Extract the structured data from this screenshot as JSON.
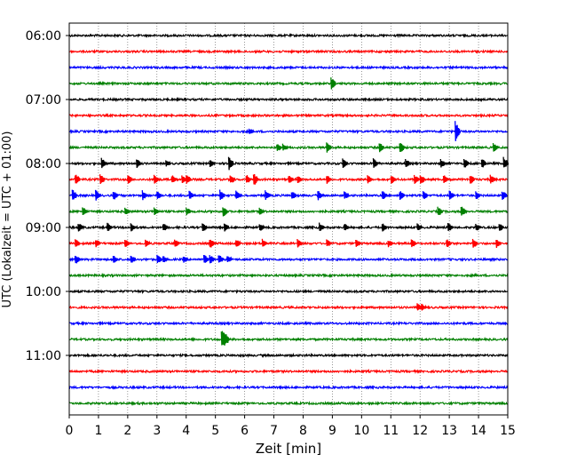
{
  "chart_data": {
    "type": "line",
    "xlabel": "Zeit  [min]",
    "ylabel": "UTC (Lokalzeit = UTC + 01:00)",
    "xlim": [
      0,
      15
    ],
    "x_ticks": [
      "0",
      "1",
      "2",
      "3",
      "4",
      "5",
      "6",
      "7",
      "8",
      "9",
      "10",
      "11",
      "12",
      "13",
      "14",
      "15"
    ],
    "y_ticks": [
      {
        "label": "06:00",
        "trace": 0
      },
      {
        "label": "07:00",
        "trace": 4
      },
      {
        "label": "08:00",
        "trace": 8
      },
      {
        "label": "09:00",
        "trace": 12
      },
      {
        "label": "10:00",
        "trace": 16
      },
      {
        "label": "11:00",
        "trace": 20
      }
    ],
    "trace_interval_min": 15,
    "trace_colors": [
      "#000000",
      "#ff0000",
      "#0000ff",
      "#008000"
    ],
    "grid": "vertical dotted at each minute",
    "traces": [
      {
        "start": "06:00",
        "events": []
      },
      {
        "start": "06:15",
        "events": []
      },
      {
        "start": "06:30",
        "events": []
      },
      {
        "start": "06:45",
        "events": [
          {
            "t": 8.95,
            "amp": 1.3
          }
        ]
      },
      {
        "start": "07:00",
        "events": []
      },
      {
        "start": "07:15",
        "events": []
      },
      {
        "start": "07:30",
        "events": [
          {
            "t": 6.15,
            "amp": 0.6
          },
          {
            "t": 13.2,
            "amp": 2.0
          }
        ]
      },
      {
        "start": "07:45",
        "events": [
          {
            "t": 7.1,
            "amp": 0.9
          },
          {
            "t": 7.3,
            "amp": 0.8
          },
          {
            "t": 8.8,
            "amp": 1.2
          },
          {
            "t": 10.6,
            "amp": 1.0
          },
          {
            "t": 11.3,
            "amp": 1.2
          },
          {
            "t": 14.5,
            "amp": 0.9
          }
        ]
      },
      {
        "start": "08:00",
        "events": [
          {
            "t": 1.1,
            "amp": 1.1
          },
          {
            "t": 2.3,
            "amp": 0.9
          },
          {
            "t": 3.3,
            "amp": 0.7
          },
          {
            "t": 4.8,
            "amp": 0.8
          },
          {
            "t": 5.45,
            "amp": 1.4
          },
          {
            "t": 9.35,
            "amp": 1.0
          },
          {
            "t": 10.4,
            "amp": 1.0
          },
          {
            "t": 11.5,
            "amp": 0.9
          },
          {
            "t": 12.7,
            "amp": 0.9
          },
          {
            "t": 13.5,
            "amp": 1.0
          },
          {
            "t": 14.1,
            "amp": 1.0
          },
          {
            "t": 14.85,
            "amp": 1.3
          }
        ]
      },
      {
        "start": "08:15",
        "events": [
          {
            "t": 0.2,
            "amp": 1.2
          },
          {
            "t": 1.05,
            "amp": 1.1
          },
          {
            "t": 2.0,
            "amp": 0.9
          },
          {
            "t": 2.9,
            "amp": 1.0
          },
          {
            "t": 3.5,
            "amp": 0.9
          },
          {
            "t": 3.85,
            "amp": 0.8
          },
          {
            "t": 4.0,
            "amp": 1.0
          },
          {
            "t": 5.5,
            "amp": 1.0
          },
          {
            "t": 6.05,
            "amp": 1.0
          },
          {
            "t": 6.3,
            "amp": 1.3
          },
          {
            "t": 7.5,
            "amp": 1.0
          },
          {
            "t": 7.8,
            "amp": 0.8
          },
          {
            "t": 8.8,
            "amp": 0.9
          },
          {
            "t": 10.2,
            "amp": 1.0
          },
          {
            "t": 11.0,
            "amp": 0.9
          },
          {
            "t": 11.8,
            "amp": 0.9
          },
          {
            "t": 12.0,
            "amp": 1.1
          },
          {
            "t": 12.8,
            "amp": 0.9
          },
          {
            "t": 13.7,
            "amp": 1.0
          },
          {
            "t": 14.4,
            "amp": 0.9
          }
        ]
      },
      {
        "start": "08:30",
        "events": [
          {
            "t": 0.1,
            "amp": 1.2
          },
          {
            "t": 0.9,
            "amp": 1.1
          },
          {
            "t": 1.5,
            "amp": 1.0
          },
          {
            "t": 2.5,
            "amp": 1.0
          },
          {
            "t": 3.0,
            "amp": 0.9
          },
          {
            "t": 4.1,
            "amp": 0.9
          },
          {
            "t": 5.15,
            "amp": 1.2
          },
          {
            "t": 5.7,
            "amp": 1.0
          },
          {
            "t": 6.7,
            "amp": 1.0
          },
          {
            "t": 7.6,
            "amp": 0.9
          },
          {
            "t": 8.5,
            "amp": 1.0
          },
          {
            "t": 9.4,
            "amp": 0.9
          },
          {
            "t": 10.7,
            "amp": 1.0
          },
          {
            "t": 11.3,
            "amp": 1.0
          },
          {
            "t": 12.1,
            "amp": 0.9
          },
          {
            "t": 13.0,
            "amp": 1.0
          },
          {
            "t": 13.9,
            "amp": 0.9
          },
          {
            "t": 14.8,
            "amp": 1.1
          }
        ]
      },
      {
        "start": "08:45",
        "events": [
          {
            "t": 0.45,
            "amp": 1.0
          },
          {
            "t": 1.9,
            "amp": 0.8
          },
          {
            "t": 2.9,
            "amp": 0.9
          },
          {
            "t": 4.0,
            "amp": 0.8
          },
          {
            "t": 5.25,
            "amp": 1.1
          },
          {
            "t": 6.5,
            "amp": 0.7
          },
          {
            "t": 12.6,
            "amp": 1.0
          },
          {
            "t": 13.4,
            "amp": 1.1
          }
        ]
      },
      {
        "start": "09:00",
        "events": [
          {
            "t": 0.3,
            "amp": 1.0
          },
          {
            "t": 1.3,
            "amp": 0.9
          },
          {
            "t": 2.1,
            "amp": 0.8
          },
          {
            "t": 3.2,
            "amp": 0.9
          },
          {
            "t": 4.55,
            "amp": 1.0
          },
          {
            "t": 5.3,
            "amp": 0.9
          },
          {
            "t": 6.5,
            "amp": 0.8
          },
          {
            "t": 8.55,
            "amp": 1.0
          },
          {
            "t": 9.4,
            "amp": 0.8
          },
          {
            "t": 10.7,
            "amp": 0.9
          },
          {
            "t": 11.9,
            "amp": 0.8
          },
          {
            "t": 12.95,
            "amp": 1.0
          },
          {
            "t": 13.9,
            "amp": 0.8
          },
          {
            "t": 14.7,
            "amp": 0.9
          }
        ]
      },
      {
        "start": "09:15",
        "events": [
          {
            "t": 0.2,
            "amp": 1.0
          },
          {
            "t": 0.9,
            "amp": 0.9
          },
          {
            "t": 1.9,
            "amp": 0.9
          },
          {
            "t": 2.6,
            "amp": 0.8
          },
          {
            "t": 3.6,
            "amp": 0.9
          },
          {
            "t": 4.8,
            "amp": 1.0
          },
          {
            "t": 5.7,
            "amp": 0.8
          },
          {
            "t": 6.6,
            "amp": 0.9
          },
          {
            "t": 7.8,
            "amp": 0.9
          },
          {
            "t": 8.8,
            "amp": 0.8
          },
          {
            "t": 9.8,
            "amp": 0.9
          },
          {
            "t": 10.9,
            "amp": 0.8
          },
          {
            "t": 11.7,
            "amp": 0.9
          },
          {
            "t": 12.9,
            "amp": 0.9
          },
          {
            "t": 13.8,
            "amp": 1.0
          },
          {
            "t": 14.6,
            "amp": 0.9
          }
        ]
      },
      {
        "start": "09:30",
        "events": [
          {
            "t": 0.2,
            "amp": 1.0
          },
          {
            "t": 1.5,
            "amp": 0.8
          },
          {
            "t": 2.1,
            "amp": 0.9
          },
          {
            "t": 3.0,
            "amp": 1.0
          },
          {
            "t": 3.2,
            "amp": 0.8
          },
          {
            "t": 3.9,
            "amp": 0.8
          },
          {
            "t": 4.6,
            "amp": 1.0
          },
          {
            "t": 4.8,
            "amp": 0.9
          },
          {
            "t": 5.1,
            "amp": 1.0
          },
          {
            "t": 5.4,
            "amp": 0.8
          }
        ]
      },
      {
        "start": "09:45",
        "events": []
      },
      {
        "start": "10:00",
        "events": []
      },
      {
        "start": "10:15",
        "events": [
          {
            "t": 11.9,
            "amp": 0.9
          },
          {
            "t": 12.05,
            "amp": 0.7
          }
        ]
      },
      {
        "start": "10:30",
        "events": []
      },
      {
        "start": "10:45",
        "events": [
          {
            "t": 5.2,
            "amp": 2.0
          },
          {
            "t": 5.3,
            "amp": 1.6
          }
        ]
      },
      {
        "start": "11:00",
        "events": []
      },
      {
        "start": "11:15",
        "events": []
      },
      {
        "start": "11:30",
        "events": []
      },
      {
        "start": "11:45",
        "events": []
      }
    ]
  }
}
